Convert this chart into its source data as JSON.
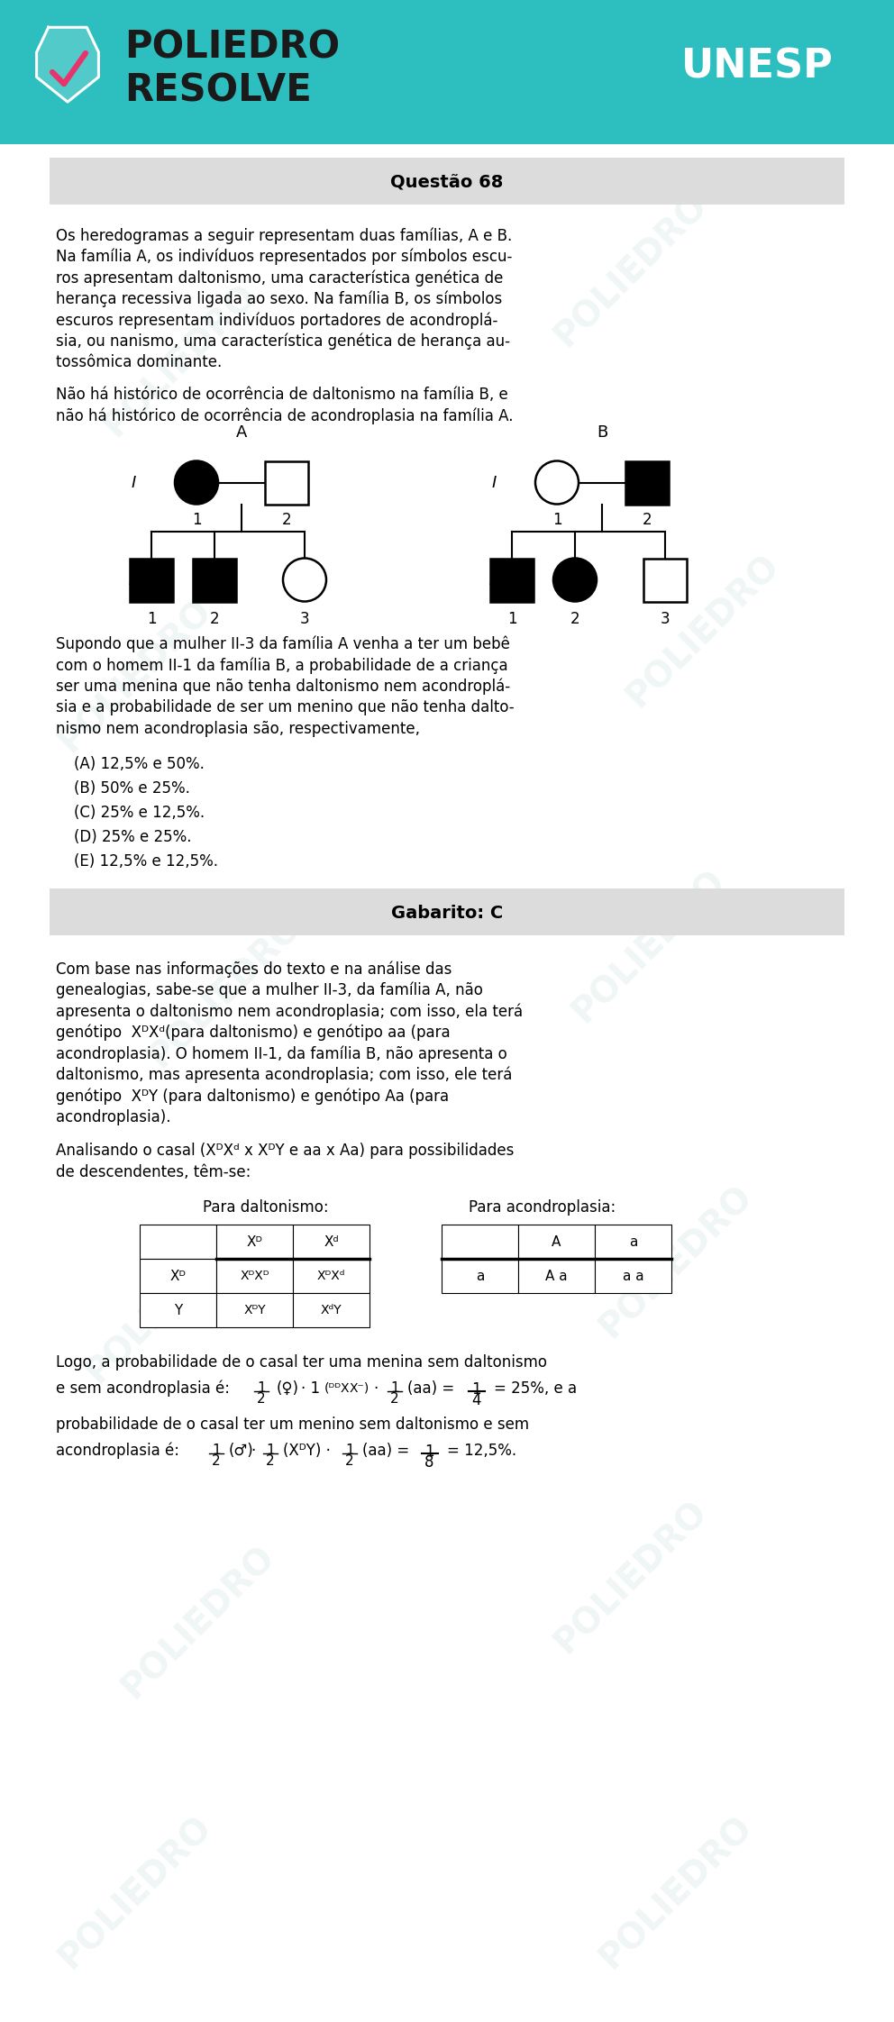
{
  "header_bg": "#2DBFBF",
  "teal_color": "#2DBFBF",
  "body_bg": "#FFFFFF",
  "question_box_bg": "#DCDCDC",
  "answer_box_bg": "#DCDCDC",
  "question_title": "Questão 68",
  "answer_title": "Gabarito: C",
  "unesp_text": "UNESP",
  "options": [
    "(A) 12,5% e 50%.",
    "(B) 50% e 25%.",
    "(C) 25% e 12,5%.",
    "(D) 25% e 25%.",
    "(E) 12,5% e 12,5%."
  ]
}
